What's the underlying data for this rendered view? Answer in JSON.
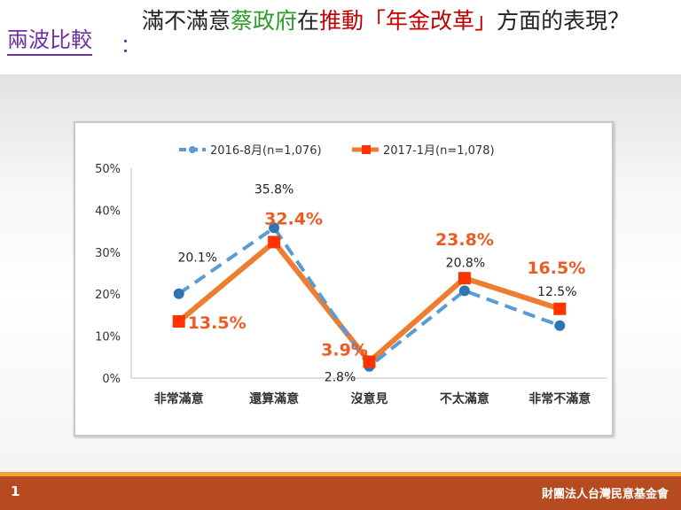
{
  "header": {
    "label": "兩波比較",
    "colon": "：",
    "title_parts": [
      "滿不滿意",
      "蔡政府",
      "在",
      "推動「年金改革」",
      "方面的表現？"
    ]
  },
  "chart_data": {
    "type": "line",
    "categories": [
      "非常滿意",
      "還算滿意",
      "沒意見",
      "不太滿意",
      "非常不滿意"
    ],
    "series": [
      {
        "name": "2016-8月(n=1,076)",
        "values": [
          20.1,
          35.8,
          2.8,
          20.8,
          12.5
        ],
        "labels": [
          "20.1%",
          "35.8%",
          "2.8%",
          "20.8%",
          "12.5%"
        ],
        "color": "#5b9bd5"
      },
      {
        "name": "2017-1月(n=1,078)",
        "values": [
          13.5,
          32.4,
          3.9,
          23.8,
          16.5
        ],
        "labels": [
          "13.5%",
          "32.4%",
          "3.9%",
          "23.8%",
          "16.5%"
        ],
        "color": "#ed7d31"
      }
    ],
    "yticks": [
      "0%",
      "10%",
      "20%",
      "30%",
      "40%",
      "50%"
    ],
    "ylim": [
      0,
      50
    ],
    "grid": false,
    "legend": "top"
  },
  "footer": {
    "page": "1",
    "org": "財團法人台灣民意基金會"
  }
}
